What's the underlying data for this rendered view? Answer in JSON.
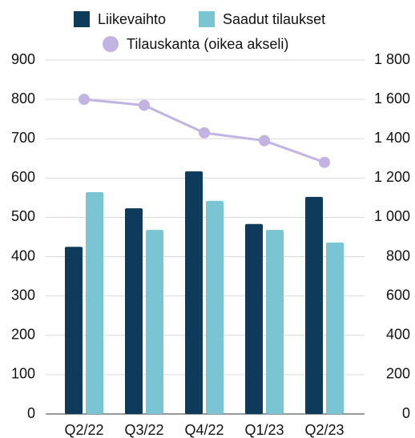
{
  "chart_data": {
    "type": "bar",
    "categories": [
      "Q2/22",
      "Q3/22",
      "Q4/22",
      "Q1/23",
      "Q2/23"
    ],
    "series": [
      {
        "name": "Liikevaihto",
        "color": "#0e3a5c",
        "type": "bar",
        "values": [
          425,
          523,
          617,
          483,
          552
        ]
      },
      {
        "name": "Saadut tilaukset",
        "color": "#7ac5d3",
        "type": "bar",
        "values": [
          564,
          468,
          542,
          468,
          436
        ]
      },
      {
        "name": "Tilauskanta (oikea akseli)",
        "color": "#c2b4e2",
        "type": "line",
        "axis": "y2",
        "values": [
          1600,
          1570,
          1430,
          1390,
          1280
        ]
      }
    ],
    "ylim": [
      0,
      900
    ],
    "yticks": [
      0,
      100,
      200,
      300,
      400,
      500,
      600,
      700,
      800,
      900
    ],
    "y2lim": [
      0,
      1800
    ],
    "y2ticks": [
      0,
      200,
      400,
      600,
      800,
      {
        "value": 1000,
        "label": "1 000"
      },
      {
        "value": 1200,
        "label": "1 200"
      },
      {
        "value": 1400,
        "label": "1 400"
      },
      {
        "value": 1600,
        "label": "1 600"
      },
      {
        "value": 1800,
        "label": "1 800"
      }
    ],
    "grid": true,
    "legend": "top"
  }
}
